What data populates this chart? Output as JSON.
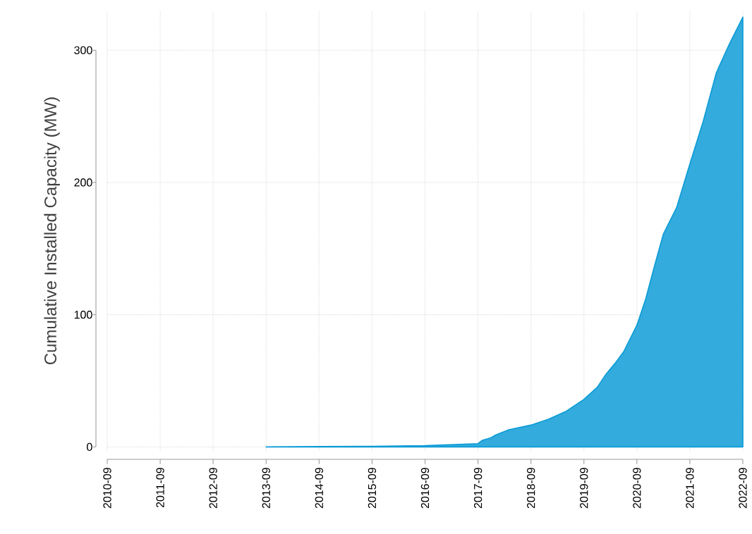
{
  "chart_data": {
    "type": "area",
    "ylabel": "Cumulative Installed Capacity (MW)",
    "x": [
      "2013-09",
      "2014-09",
      "2015-09",
      "2016-09",
      "2017-09",
      "2017-10",
      "2017-12",
      "2018-01",
      "2018-04",
      "2018-09",
      "2019-01",
      "2019-05",
      "2019-09",
      "2019-12",
      "2020-02",
      "2020-04",
      "2020-06",
      "2020-09",
      "2020-11",
      "2021-01",
      "2021-03",
      "2021-06",
      "2021-09",
      "2021-12",
      "2022-03",
      "2022-06",
      "2022-09"
    ],
    "values": [
      0,
      0.3,
      0.5,
      1,
      2.5,
      5,
      7,
      9,
      13,
      16.5,
      21,
      27,
      36,
      45,
      55,
      63,
      72,
      92,
      112,
      137,
      161,
      181,
      214,
      246,
      283,
      305,
      325
    ],
    "color": "#33abdd",
    "xlim": [
      "2010-09",
      "2022-09"
    ],
    "xticks": [
      "2010-09",
      "2011-09",
      "2012-09",
      "2013-09",
      "2014-09",
      "2015-09",
      "2016-09",
      "2017-09",
      "2018-09",
      "2019-09",
      "2020-09",
      "2021-09",
      "2022-09"
    ],
    "ylim": [
      -3,
      330
    ],
    "yticks": [
      0,
      100,
      200,
      300
    ],
    "grid": true
  }
}
